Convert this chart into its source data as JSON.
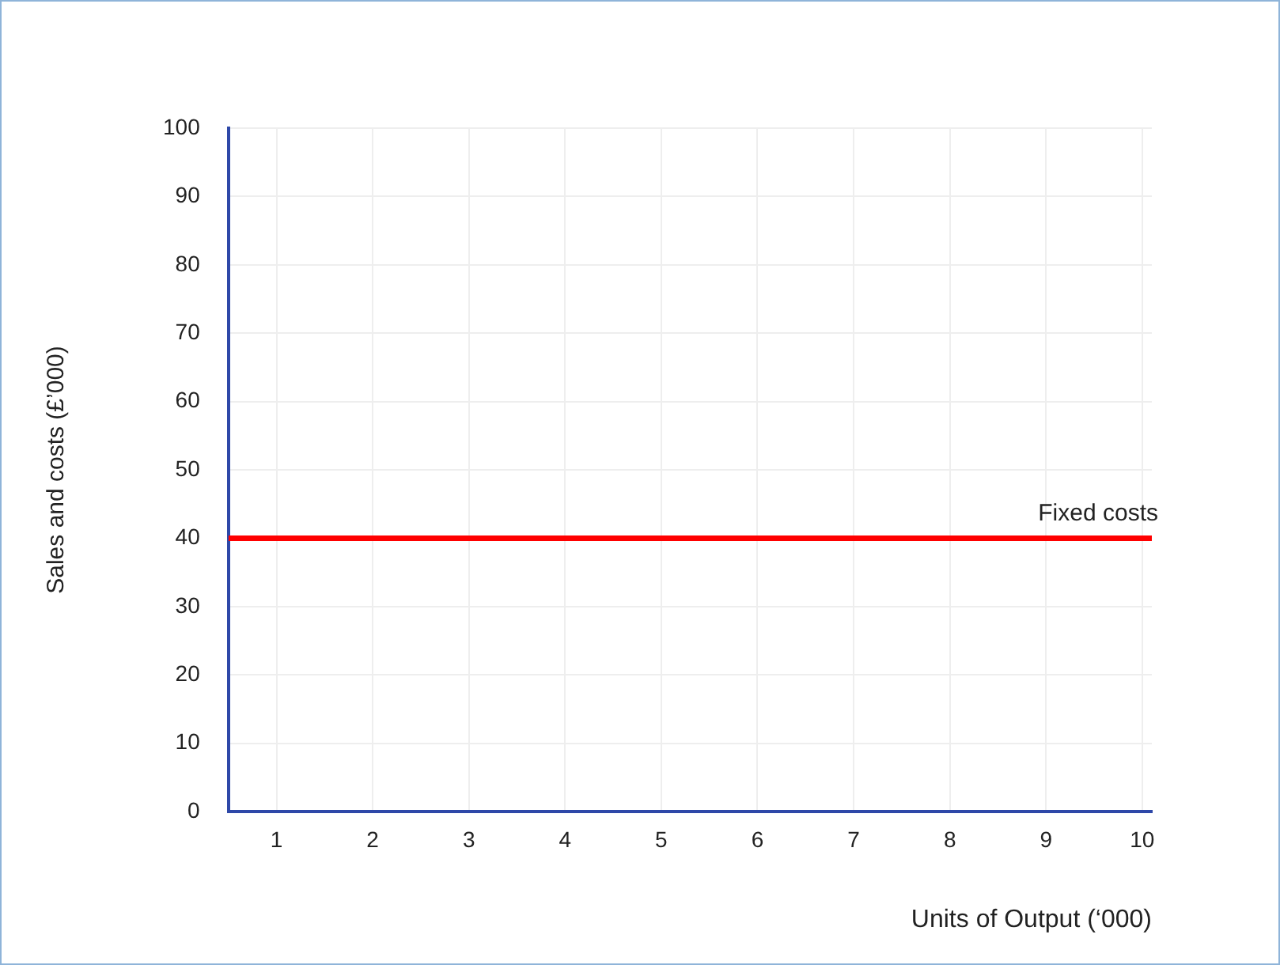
{
  "chart_data": {
    "type": "line",
    "xlabel": "Units of Output (‘000)",
    "ylabel": "Sales and costs (£’000)",
    "xlim": [
      0.5,
      10.1
    ],
    "xticks": [
      1,
      2,
      3,
      4,
      5,
      6,
      7,
      8,
      9,
      10
    ],
    "ylim": [
      0,
      100
    ],
    "yticks": [
      0,
      10,
      20,
      30,
      40,
      50,
      60,
      70,
      80,
      90,
      100
    ],
    "series": [
      {
        "name": "Fixed costs",
        "color": "#ff0000",
        "x": [
          0.5,
          10.1
        ],
        "values": [
          40,
          40
        ]
      }
    ],
    "grid": true,
    "legend": false,
    "marker": "none",
    "line_style": "solid"
  }
}
